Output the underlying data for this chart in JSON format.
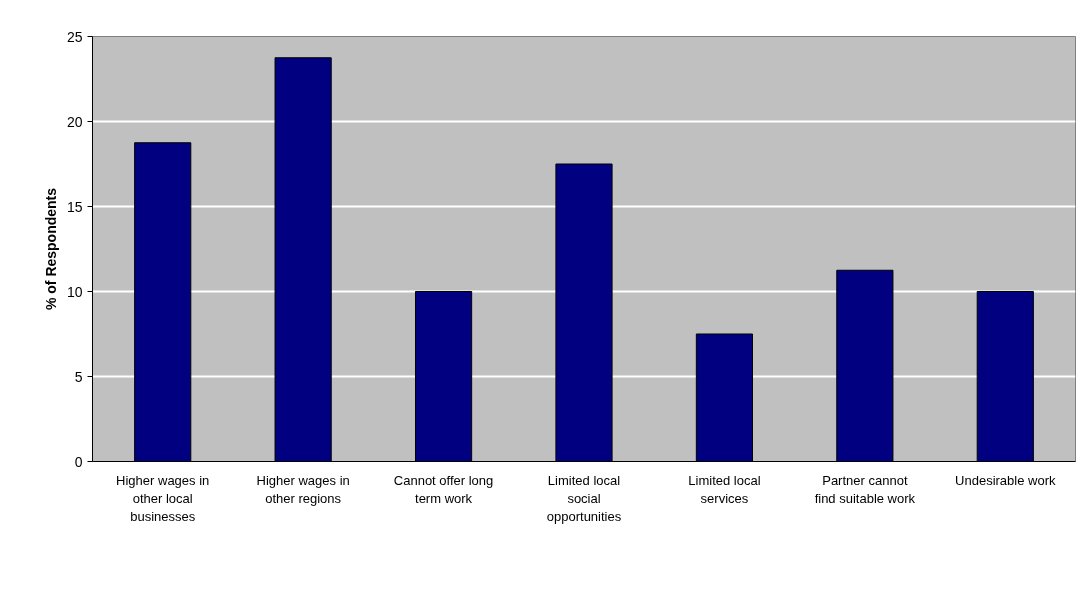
{
  "chart_data": {
    "type": "bar",
    "ylabel": "% of Respondents",
    "categories": [
      "Higher wages in other local businesses",
      "Higher wages in other regions",
      "Cannot offer long term work",
      "Limited local social opportunities",
      "Limited local services",
      "Partner cannot find suitable work",
      "Undesirable work"
    ],
    "values": [
      18.75,
      23.75,
      10,
      17.5,
      7.5,
      11.25,
      10
    ],
    "color": "#000080",
    "ylim": [
      0,
      25
    ],
    "yticks": [
      0,
      5,
      10,
      15,
      20,
      25
    ],
    "grid": "y"
  }
}
